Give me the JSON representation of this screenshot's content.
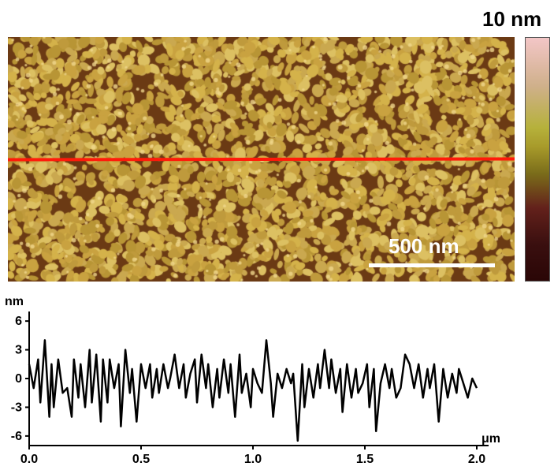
{
  "colorbar": {
    "max_label": "10 nm"
  },
  "scale_bar": {
    "label": "500 nm"
  },
  "profile": {
    "y_unit": "nm",
    "x_unit": "μm",
    "y_ticks": [
      "6",
      "3",
      "0",
      "-3",
      "-6"
    ],
    "x_ticks": [
      "0.0",
      "0.5",
      "1.0",
      "1.5",
      "2.0"
    ]
  },
  "chart_data": {
    "type": "line",
    "ylim": [
      -7,
      7
    ],
    "xlim": [
      0,
      2.0
    ],
    "series": [
      {
        "x": [
          0.0,
          0.02,
          0.04,
          0.05,
          0.07,
          0.09,
          0.1,
          0.11,
          0.13,
          0.15,
          0.17,
          0.19,
          0.2,
          0.22,
          0.23,
          0.25,
          0.27,
          0.28,
          0.3,
          0.32,
          0.33,
          0.35,
          0.36,
          0.38,
          0.4,
          0.41,
          0.43,
          0.45,
          0.46,
          0.48,
          0.5,
          0.52,
          0.54,
          0.55,
          0.57,
          0.58,
          0.6,
          0.62,
          0.63,
          0.65,
          0.67,
          0.69,
          0.7,
          0.72,
          0.74,
          0.75,
          0.77,
          0.79,
          0.8,
          0.82,
          0.84,
          0.85,
          0.87,
          0.89,
          0.9,
          0.92,
          0.94,
          0.95,
          0.97,
          0.99,
          1.0,
          1.02,
          1.04,
          1.06,
          1.08,
          1.09,
          1.11,
          1.13,
          1.15,
          1.17,
          1.18,
          1.2,
          1.22,
          1.23,
          1.25,
          1.27,
          1.29,
          1.3,
          1.32,
          1.34,
          1.35,
          1.37,
          1.39,
          1.4,
          1.42,
          1.44,
          1.46,
          1.47,
          1.49,
          1.51,
          1.52,
          1.54,
          1.55,
          1.57,
          1.59,
          1.61,
          1.62,
          1.64,
          1.66,
          1.68,
          1.7,
          1.72,
          1.74,
          1.76,
          1.78,
          1.79,
          1.81,
          1.83,
          1.85,
          1.87,
          1.89,
          1.91,
          1.92,
          1.94,
          1.96,
          1.98,
          2.0
        ],
        "y": [
          1.5,
          -1.0,
          2.0,
          -2.5,
          4.0,
          -4.0,
          1.5,
          -3.0,
          2.0,
          -1.5,
          -1.0,
          -4.0,
          2.0,
          -2.0,
          1.5,
          -3.0,
          3.0,
          -2.5,
          2.5,
          -4.5,
          2.0,
          -2.5,
          2.0,
          -1.0,
          1.5,
          -5.0,
          3.0,
          -1.5,
          1.0,
          -4.5,
          1.5,
          -1.0,
          1.5,
          -2.0,
          1.0,
          -1.5,
          1.5,
          -1.0,
          0.0,
          2.5,
          -1.0,
          1.5,
          -2.0,
          0.5,
          2.0,
          -2.5,
          2.5,
          -1.0,
          1.5,
          -3.0,
          1.0,
          -2.0,
          2.0,
          -1.5,
          1.5,
          -4.0,
          2.5,
          -1.5,
          0.5,
          -3.0,
          1.0,
          -0.5,
          -1.5,
          4.0,
          -0.5,
          -4.0,
          0.5,
          -1.0,
          1.0,
          -0.5,
          0.5,
          -6.5,
          1.5,
          -3.0,
          1.0,
          -2.0,
          1.5,
          -1.0,
          3.0,
          -1.0,
          2.0,
          -1.5,
          1.0,
          -3.5,
          1.5,
          -2.0,
          1.0,
          -1.5,
          -0.5,
          1.5,
          -3.0,
          1.0,
          -5.5,
          -0.5,
          1.5,
          -1.0,
          1.0,
          -2.0,
          -1.0,
          2.5,
          1.5,
          -1.0,
          1.5,
          -2.0,
          1.0,
          -1.0,
          1.5,
          -4.5,
          1.0,
          -2.0,
          0.5,
          -1.5,
          1.0,
          -0.5,
          -2.0,
          0.0,
          -1.0
        ]
      }
    ]
  }
}
